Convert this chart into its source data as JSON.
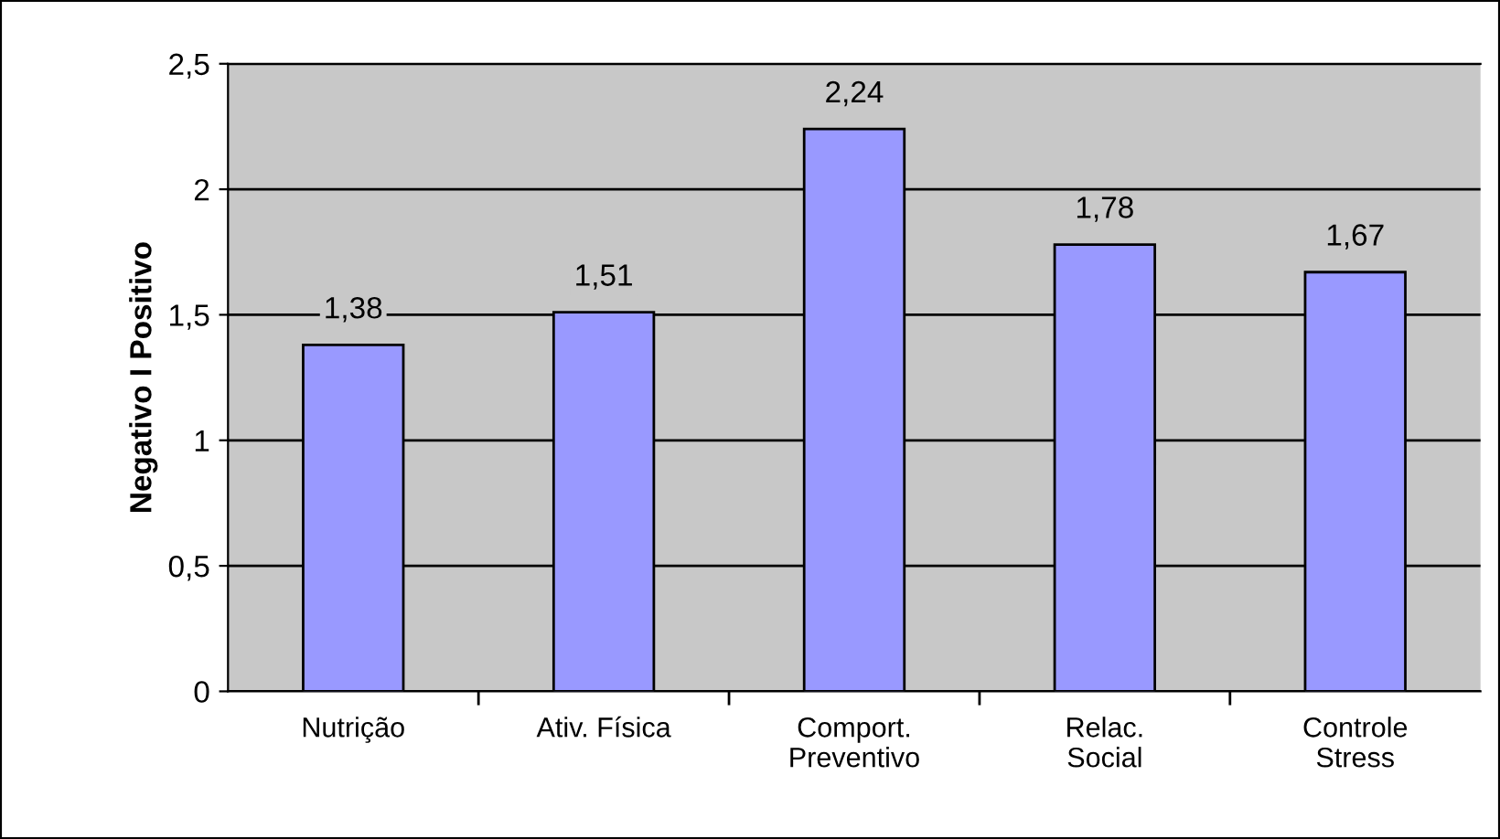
{
  "chart_data": {
    "type": "bar",
    "ylabel": "Negativo I Positivo",
    "categories": [
      "Nutrição",
      "Ativ. Física",
      "Comport.\nPreventivo",
      "Relac.\nSocial",
      "Controle\nStress"
    ],
    "values": [
      1.38,
      1.51,
      2.24,
      1.78,
      1.67
    ],
    "value_labels": [
      "1,38",
      "1,51",
      "2,24",
      "1,78",
      "1,67"
    ],
    "color": "#9999ff",
    "ylim": [
      0,
      2.5
    ],
    "yticks": [
      0,
      {
        "value": 0.5,
        "label": "0,5"
      },
      1,
      {
        "value": 1.5,
        "label": "1,5"
      },
      2,
      {
        "value": 2.5,
        "label": "2,5"
      }
    ],
    "grid": "y"
  }
}
